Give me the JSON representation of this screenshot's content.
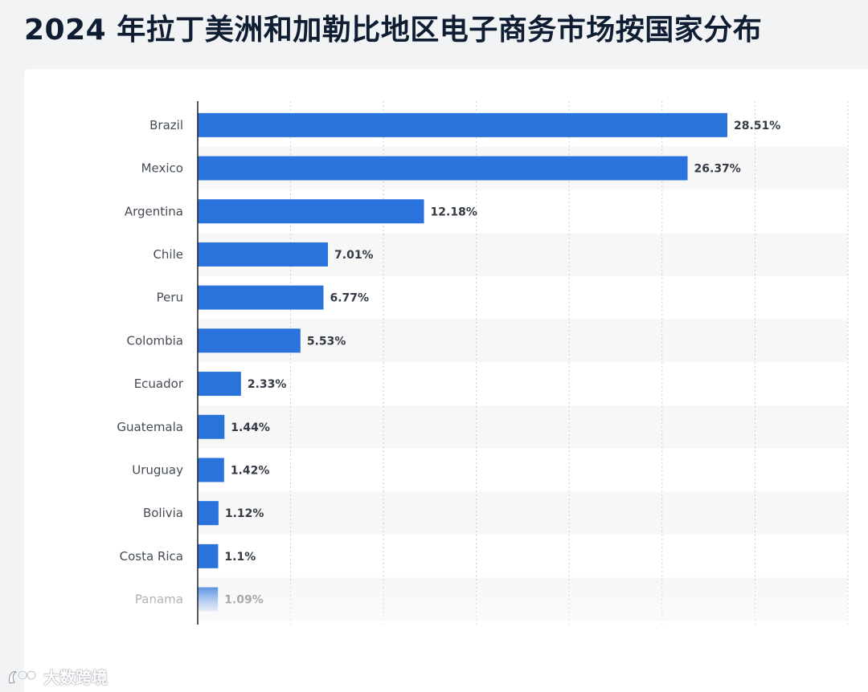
{
  "title": "2024 年拉丁美洲和加勒比地区电子商务市场按国家分布",
  "watermark": "大数跨境",
  "colors": {
    "bar": "#2a73dd",
    "band": "#f7f7f7",
    "grid": "#c9ced6",
    "axis": "#222222"
  },
  "chart_data": {
    "type": "bar",
    "orientation": "horizontal",
    "title": "2024 年拉丁美洲和加勒比地区电子商务市场按国家分布",
    "xlabel": "",
    "ylabel": "",
    "unit": "%",
    "xlim": [
      0,
      35
    ],
    "grid": true,
    "categories": [
      "Brazil",
      "Mexico",
      "Argentina",
      "Chile",
      "Peru",
      "Colombia",
      "Ecuador",
      "Guatemala",
      "Uruguay",
      "Bolivia",
      "Costa Rica",
      "Panama"
    ],
    "values": [
      28.51,
      26.37,
      12.18,
      7.01,
      6.77,
      5.53,
      2.33,
      1.44,
      1.42,
      1.12,
      1.1,
      1.09
    ],
    "value_labels": [
      "28.51%",
      "26.37%",
      "12.18%",
      "7.01%",
      "6.77%",
      "5.53%",
      "2.33%",
      "1.44%",
      "1.42%",
      "1.12%",
      "1.1%",
      "1.09%"
    ]
  }
}
